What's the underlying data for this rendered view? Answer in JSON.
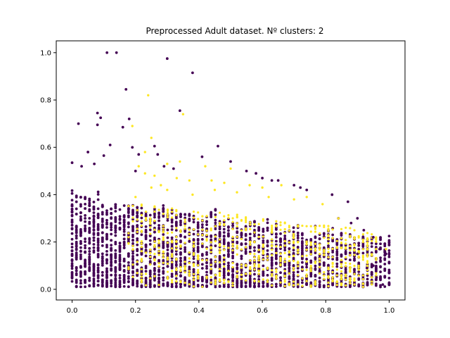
{
  "chart_data": {
    "type": "scatter",
    "title": "Preprocessed Adult dataset. Nº clusters: 2",
    "xlabel": "",
    "ylabel": "",
    "xlim": [
      -0.05,
      1.05
    ],
    "ylim": [
      -0.045,
      1.05
    ],
    "x_ticks": [
      0.0,
      0.2,
      0.4,
      0.6,
      0.8,
      1.0
    ],
    "y_ticks": [
      0.0,
      0.2,
      0.4,
      0.6,
      0.8,
      1.0
    ],
    "x_tick_labels": [
      "0.0",
      "0.2",
      "0.4",
      "0.6",
      "0.8",
      "1.0"
    ],
    "y_tick_labels": [
      "0.0",
      "0.2",
      "0.4",
      "0.6",
      "0.8",
      "1.0"
    ],
    "grid": false,
    "legend": "none",
    "colors": {
      "cluster_0": "#440154",
      "cluster_1": "#fde725"
    },
    "series": [
      {
        "cluster": 0,
        "color": "#440154",
        "points": [
          [
            0.11,
            1.0
          ],
          [
            0.14,
            1.0
          ],
          [
            0.3,
            0.975
          ],
          [
            0.38,
            0.915
          ],
          [
            0.17,
            0.845
          ],
          [
            0.34,
            0.755
          ],
          [
            0.08,
            0.745
          ],
          [
            0.09,
            0.725
          ],
          [
            0.18,
            0.72
          ],
          [
            0.02,
            0.7
          ],
          [
            0.08,
            0.695
          ],
          [
            0.16,
            0.685
          ],
          [
            0.12,
            0.61
          ],
          [
            0.26,
            0.605
          ],
          [
            0.46,
            0.605
          ],
          [
            0.19,
            0.6
          ],
          [
            0.05,
            0.58
          ],
          [
            0.21,
            0.57
          ],
          [
            0.27,
            0.57
          ],
          [
            0.1,
            0.565
          ],
          [
            0.41,
            0.56
          ],
          [
            0.0,
            0.535
          ],
          [
            0.07,
            0.53
          ],
          [
            0.03,
            0.52
          ],
          [
            0.29,
            0.52
          ],
          [
            0.5,
            0.54
          ],
          [
            0.55,
            0.5
          ],
          [
            0.58,
            0.49
          ],
          [
            0.2,
            0.5
          ],
          [
            0.32,
            0.51
          ],
          [
            0.63,
            0.46
          ],
          [
            0.6,
            0.47
          ],
          [
            0.65,
            0.46
          ],
          [
            0.74,
            0.42
          ],
          [
            0.7,
            0.44
          ],
          [
            0.72,
            0.43
          ],
          [
            0.87,
            0.37
          ],
          [
            0.82,
            0.4
          ],
          [
            0.9,
            0.3
          ],
          [
            0.92,
            0.25
          ],
          [
            0.95,
            0.22
          ],
          [
            1.0,
            0.225
          ],
          [
            0.97,
            0.17
          ],
          [
            1.0,
            0.2
          ],
          [
            0.88,
            0.28
          ],
          [
            0.84,
            0.3
          ],
          [
            0.99,
            0.15
          ],
          [
            0.98,
            0.02
          ],
          [
            0.95,
            0.1
          ],
          [
            0.93,
            0.09
          ],
          [
            0.96,
            0.05
          ],
          [
            0.9,
            0.15
          ]
        ]
      },
      {
        "cluster": 1,
        "color": "#fde725",
        "points": [
          [
            0.24,
            0.82
          ],
          [
            0.19,
            0.69
          ],
          [
            0.35,
            0.74
          ],
          [
            0.25,
            0.64
          ],
          [
            0.23,
            0.58
          ],
          [
            0.21,
            0.52
          ],
          [
            0.3,
            0.53
          ],
          [
            0.34,
            0.54
          ],
          [
            0.42,
            0.52
          ],
          [
            0.5,
            0.51
          ],
          [
            0.23,
            0.49
          ],
          [
            0.26,
            0.48
          ],
          [
            0.33,
            0.47
          ],
          [
            0.37,
            0.46
          ],
          [
            0.44,
            0.46
          ],
          [
            0.48,
            0.45
          ],
          [
            0.56,
            0.44
          ],
          [
            0.6,
            0.43
          ],
          [
            0.66,
            0.44
          ],
          [
            0.62,
            0.39
          ],
          [
            0.7,
            0.38
          ],
          [
            0.74,
            0.39
          ],
          [
            0.45,
            0.42
          ],
          [
            0.52,
            0.41
          ],
          [
            0.3,
            0.42
          ],
          [
            0.28,
            0.44
          ],
          [
            0.79,
            0.36
          ],
          [
            0.84,
            0.3
          ],
          [
            0.89,
            0.19
          ],
          [
            0.99,
            0.17
          ],
          [
            0.2,
            0.39
          ],
          [
            0.38,
            0.4
          ],
          [
            0.25,
            0.43
          ]
        ]
      }
    ]
  }
}
